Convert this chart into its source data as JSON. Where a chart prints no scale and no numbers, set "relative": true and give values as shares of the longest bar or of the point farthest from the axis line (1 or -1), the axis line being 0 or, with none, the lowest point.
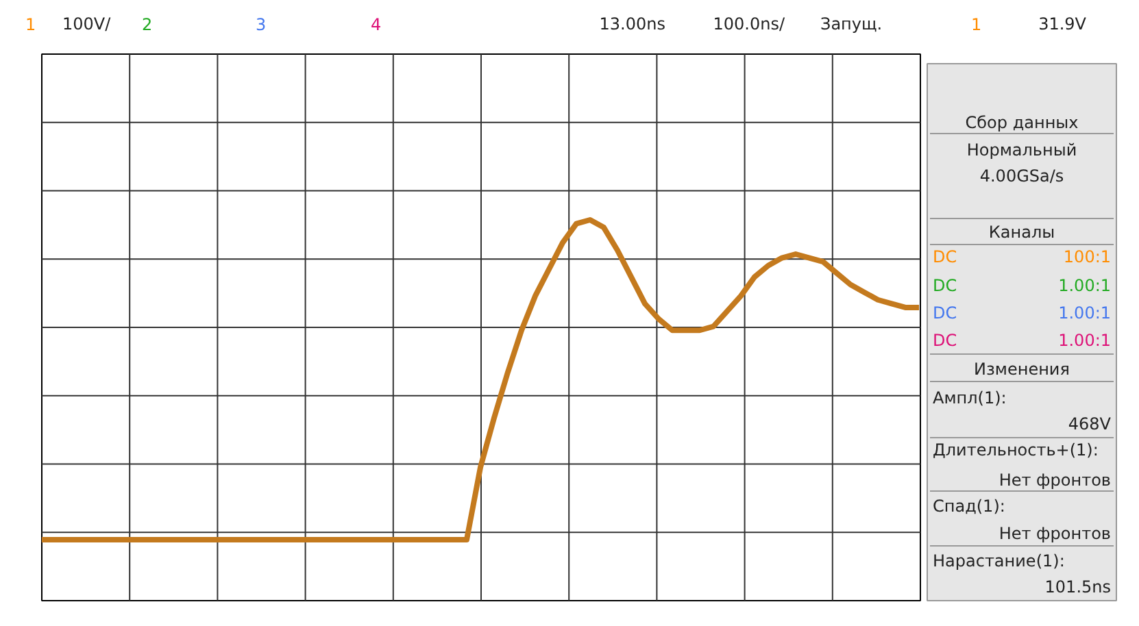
{
  "chart_data": {
    "type": "line",
    "relative": true,
    "grid": true,
    "categories": [
      null,
      null,
      null,
      null,
      null,
      null,
      null,
      null,
      null,
      null,
      null,
      null,
      null,
      null,
      null,
      null,
      null,
      null,
      null,
      null,
      null,
      null,
      null,
      null,
      null,
      null,
      null,
      null,
      null,
      null,
      null,
      null,
      null,
      null,
      null,
      null,
      null,
      null,
      null,
      null,
      null,
      null,
      null,
      null,
      null,
      null,
      null,
      null,
      null,
      null,
      null,
      null,
      null,
      null,
      null,
      null,
      null,
      null,
      null,
      null,
      null,
      null,
      null,
      null,
      null
    ],
    "series": [
      {
        "color": "#c47a1e",
        "values": [
          0.16,
          0.16,
          0.16,
          0.16,
          0.16,
          0.16,
          0.16,
          0.16,
          0.16,
          0.16,
          0.16,
          0.16,
          0.16,
          0.16,
          0.16,
          0.16,
          0.16,
          0.16,
          0.16,
          0.16,
          0.16,
          0.16,
          0.16,
          0.16,
          0.16,
          0.16,
          0.16,
          0.16,
          0.16,
          0.16,
          0.16,
          0.16,
          0.35,
          0.48,
          0.6,
          0.71,
          0.8,
          0.87,
          0.94,
          0.99,
          1,
          0.98,
          0.92,
          0.85,
          0.78,
          0.74,
          0.71,
          0.71,
          0.71,
          0.72,
          0.76,
          0.8,
          0.85,
          0.88,
          0.9,
          0.91,
          0.9,
          0.89,
          0.86,
          0.83,
          0.81,
          0.79,
          0.78,
          0.77,
          0.77
        ]
      }
    ],
    "annotations": [
      "1",
      "100V/",
      "2",
      "3",
      "4",
      "13.00ns",
      "100.0ns/",
      "Запущ.",
      "1",
      "31.9V",
      "Сбор данных",
      "Нормальный",
      "4.00GSa/s",
      "Каналы",
      "DC",
      "100:1",
      "DC",
      "1.00:1",
      "DC",
      "1.00:1",
      "DC",
      "1.00:1",
      "Изменения",
      "Ампл(1):",
      "468V",
      "Длительность+(1):",
      "Нет фронтов",
      "Спад(1):",
      "Нет фронтов",
      "Нарастание(1):",
      "101.5ns"
    ]
  }
}
